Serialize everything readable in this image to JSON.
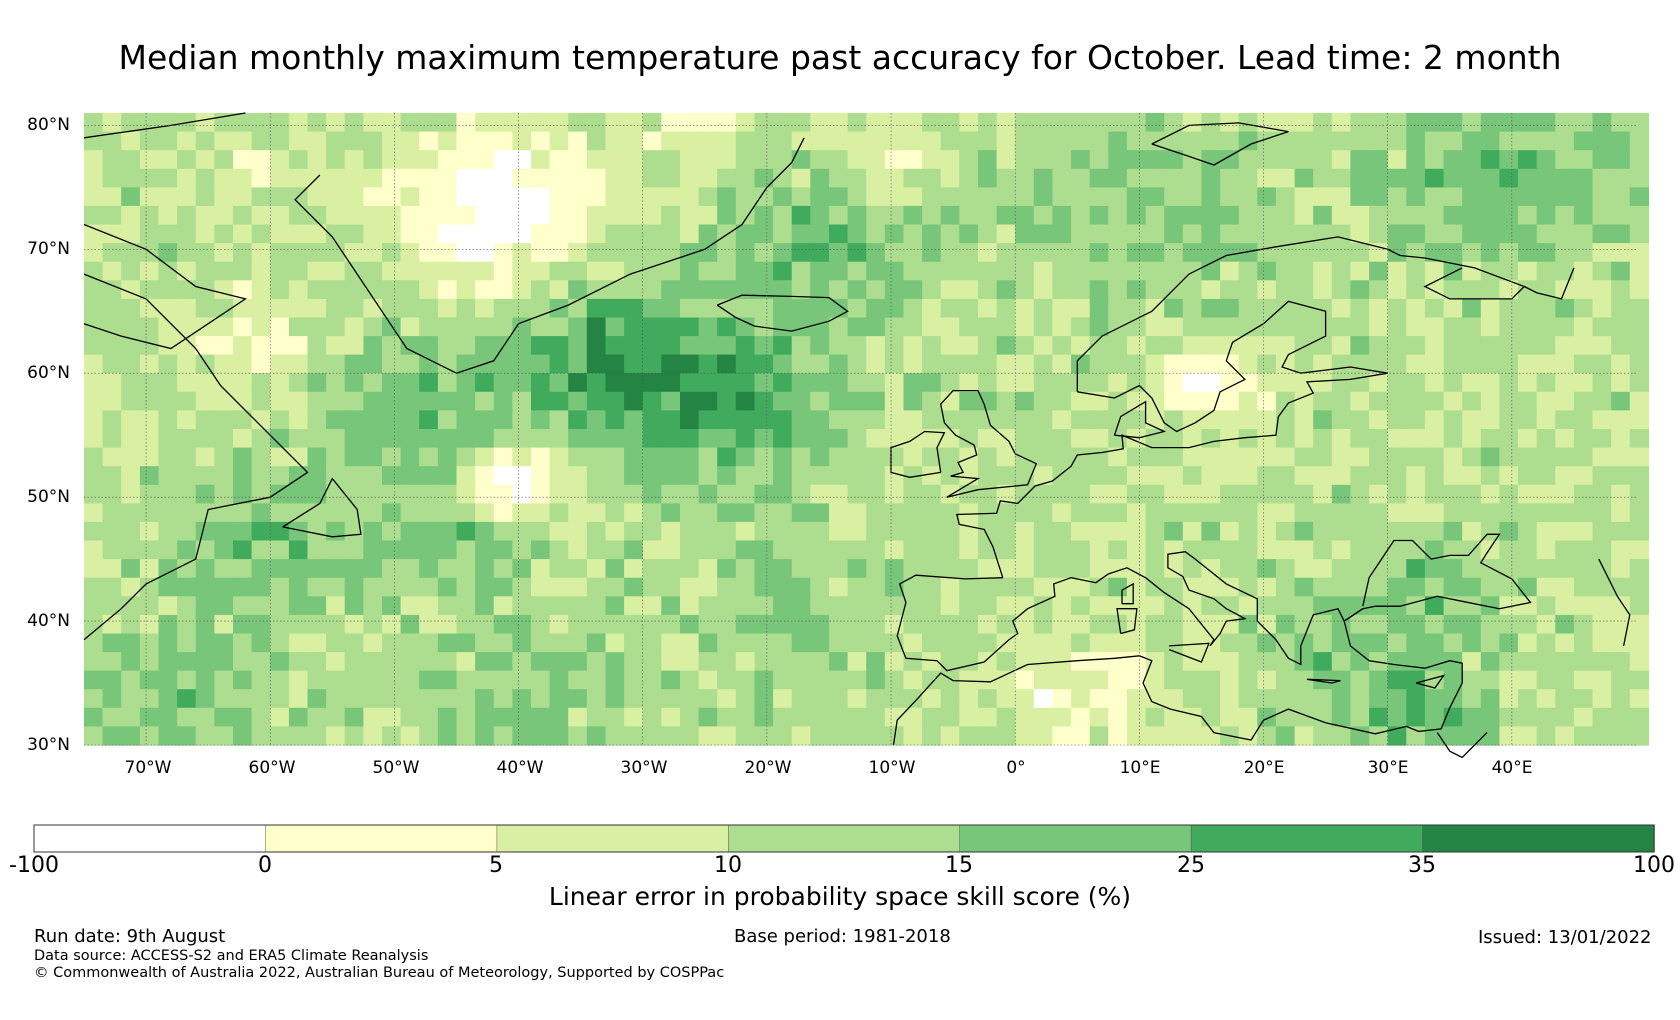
{
  "title": "Median monthly maximum temperature past accuracy for October. Lead time: 2 month",
  "map": {
    "lat_labels": [
      "80°N",
      "70°N",
      "60°N",
      "50°N",
      "40°N",
      "30°N"
    ],
    "lat_values": [
      80,
      70,
      60,
      50,
      40,
      30
    ],
    "lon_labels": [
      "70°W",
      "60°W",
      "50°W",
      "40°W",
      "30°W",
      "20°W",
      "10°W",
      "0°",
      "10°E",
      "20°E",
      "30°E",
      "40°E"
    ],
    "lon_values": [
      -70,
      -60,
      -50,
      -40,
      -30,
      -20,
      -10,
      0,
      10,
      20,
      30,
      40
    ],
    "extent": {
      "lon_min": -75,
      "lon_max": 50,
      "lat_min": 30,
      "lat_max": 81
    }
  },
  "colorbar": {
    "ticks": [
      "-100",
      "0",
      "5",
      "10",
      "15",
      "25",
      "35",
      "100"
    ],
    "colors": [
      "#ffffff",
      "#ffffcc",
      "#d9f0a3",
      "#addd8e",
      "#78c679",
      "#41ab5d",
      "#238443"
    ],
    "label": "Linear error in probability space skill score (%)"
  },
  "footer": {
    "run_date": "Run date: 9th August",
    "base_period": "Base period: 1981-2018",
    "issued": "Issued: 13/01/2022",
    "data_source": "Data source: ACCESS-S2 and ERA5 Climate Reanalysis",
    "copyright": "© Commonwealth of Australia 2022, Australian Bureau of Meteorology, Supported by COSPPac"
  }
}
